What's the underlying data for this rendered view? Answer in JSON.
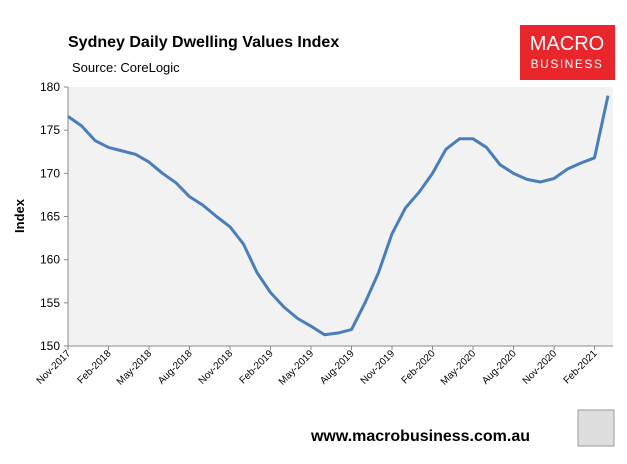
{
  "chart_data": {
    "type": "line",
    "title": "Sydney Daily Dwelling Values Index",
    "subtitle": "Source: CoreLogic",
    "y_label": "Index",
    "brand": [
      "MACRO",
      "BUSINESS"
    ],
    "footer": "www.macrobusiness.com.au",
    "categories": [
      "Nov-2017",
      null,
      null,
      "Feb-2018",
      null,
      null,
      "May-2018",
      null,
      null,
      "Aug-2018",
      null,
      null,
      "Nov-2018",
      null,
      null,
      "Feb-2019",
      null,
      null,
      "May-2019",
      null,
      null,
      "Aug-2019",
      null,
      null,
      "Nov-2019",
      null,
      null,
      "Feb-2020",
      null,
      null,
      "May-2020",
      null,
      null,
      "Aug-2020",
      null,
      null,
      "Nov-2020",
      null,
      null,
      "Feb-2021",
      null
    ],
    "series": [
      {
        "name": "Sydney",
        "color": "#4a7ebb",
        "values": [
          176.6,
          175.5,
          173.8,
          173.0,
          172.6,
          172.2,
          171.3,
          170.0,
          168.9,
          167.3,
          166.3,
          165.0,
          163.8,
          161.8,
          158.5,
          156.2,
          154.5,
          153.2,
          152.3,
          151.3,
          151.5,
          151.9,
          155.0,
          158.5,
          163.0,
          166.0,
          167.8,
          170.0,
          172.8,
          174.0,
          174.0,
          173.0,
          171.0,
          170.0,
          169.3,
          169.0,
          169.4,
          170.5,
          171.2,
          171.8,
          179.0
        ]
      }
    ],
    "ylim": [
      150,
      180
    ],
    "yticks": [
      150,
      155,
      160,
      165,
      170,
      175,
      180
    ]
  }
}
